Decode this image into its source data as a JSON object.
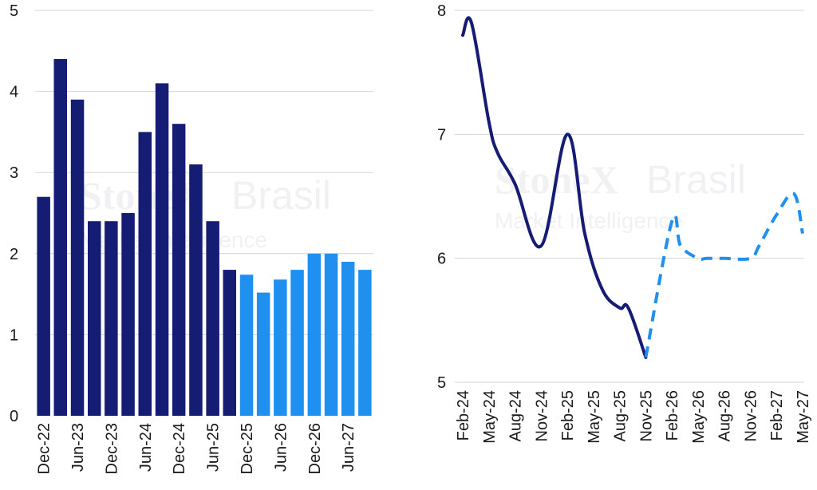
{
  "watermark": {
    "brand": "StoneX",
    "brand_suffix": "Brasil",
    "subtitle": "Market Intelligence"
  },
  "colors": {
    "actual": "#141c73",
    "forecast": "#1f8ff0",
    "grid": "#d4d4d4",
    "text": "#1a1a1a"
  },
  "chart_data": [
    {
      "type": "bar",
      "title": "",
      "xlabel": "",
      "ylabel": "",
      "ylim": [
        0,
        5
      ],
      "yticks": [
        "0",
        "1",
        "2",
        "3",
        "4",
        "5"
      ],
      "grid": true,
      "categories": [
        "Dec-22",
        "Mar-23",
        "Jun-23",
        "Sep-23",
        "Dec-23",
        "Mar-24",
        "Jun-24",
        "Sep-24",
        "Dec-24",
        "Mar-25",
        "Jun-25",
        "Sep-25",
        "Dec-25",
        "Mar-26",
        "Jun-26",
        "Sep-26",
        "Dec-26",
        "Mar-27",
        "Jun-27",
        "Sep-27"
      ],
      "xtick_labels": [
        "Dec-22",
        "Jun-23",
        "Dec-23",
        "Jun-24",
        "Dec-24",
        "Jun-25",
        "Dec-25",
        "Jun-26",
        "Dec-26",
        "Jun-27"
      ],
      "values": [
        2.7,
        4.4,
        3.9,
        2.4,
        2.4,
        2.5,
        3.5,
        4.1,
        3.6,
        3.1,
        2.4,
        1.8,
        1.74,
        1.52,
        1.68,
        1.8,
        2.0,
        2.0,
        1.9,
        1.8
      ],
      "forecast_start_index": 12
    },
    {
      "type": "line",
      "title": "",
      "xlabel": "",
      "ylabel": "",
      "ylim": [
        5,
        8
      ],
      "yticks": [
        "5",
        "6",
        "7",
        "8"
      ],
      "grid": true,
      "xtick_labels": [
        "Feb-24",
        "May-24",
        "Aug-24",
        "Nov-24",
        "Feb-25",
        "May-25",
        "Aug-25",
        "Nov-25",
        "Feb-26",
        "May-26",
        "Aug-26",
        "Nov-26",
        "Feb-27",
        "May-27"
      ],
      "series": [
        {
          "style": "solid",
          "x": [
            "Feb-24",
            "Mar-24",
            "May-24",
            "Jun-24",
            "Aug-24",
            "Nov-24",
            "Feb-25",
            "Apr-25",
            "Jun-25",
            "Aug-25",
            "Sep-25",
            "Nov-25"
          ],
          "values": [
            7.8,
            7.9,
            7.1,
            6.85,
            6.6,
            6.1,
            7.0,
            6.2,
            5.75,
            5.6,
            5.6,
            5.2
          ]
        },
        {
          "style": "dashed",
          "x": [
            "Nov-25",
            "Feb-26",
            "Mar-26",
            "May-26",
            "Jun-26",
            "Aug-26",
            "Nov-26",
            "Dec-26",
            "Feb-27",
            "Apr-27",
            "May-27"
          ],
          "values": [
            5.2,
            6.3,
            6.1,
            6.0,
            6.0,
            6.0,
            6.0,
            6.1,
            6.35,
            6.52,
            6.2
          ]
        }
      ]
    }
  ]
}
